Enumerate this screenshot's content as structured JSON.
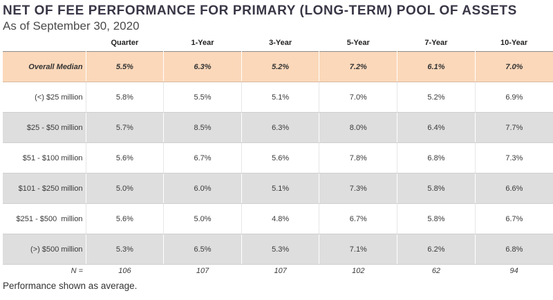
{
  "title": "NET OF FEE PERFORMANCE FOR PRIMARY (LONG-TERM) POOL OF ASSETS",
  "subtitle": "As of September 30, 2020",
  "columns": [
    "Quarter",
    "1-Year",
    "3-Year",
    "5-Year",
    "7-Year",
    "10-Year"
  ],
  "rows": [
    {
      "label": "Overall Median",
      "values": [
        "5.5%",
        "6.3%",
        "5.2%",
        "7.2%",
        "6.1%",
        "7.0%"
      ]
    },
    {
      "label": "(<) $25 million",
      "values": [
        "5.8%",
        "5.5%",
        "5.1%",
        "7.0%",
        "5.2%",
        "6.9%"
      ]
    },
    {
      "label": "$25 - $50 million",
      "values": [
        "5.7%",
        "8.5%",
        "6.3%",
        "8.0%",
        "6.4%",
        "7.7%"
      ]
    },
    {
      "label": "$51 - $100 million",
      "values": [
        "5.6%",
        "6.7%",
        "5.6%",
        "7.8%",
        "6.8%",
        "7.3%"
      ]
    },
    {
      "label": "$101 - $250 million",
      "values": [
        "5.0%",
        "6.0%",
        "5.1%",
        "7.3%",
        "5.8%",
        "6.6%"
      ]
    },
    {
      "label": "$251 - $500  million",
      "values": [
        "5.6%",
        "5.0%",
        "4.8%",
        "6.7%",
        "5.8%",
        "6.7%"
      ]
    },
    {
      "label": "(>) $500 million",
      "values": [
        "5.3%",
        "6.5%",
        "5.3%",
        "7.1%",
        "6.2%",
        "6.8%"
      ]
    }
  ],
  "n_row": {
    "label": "N =",
    "values": [
      "106",
      "107",
      "107",
      "102",
      "62",
      "94"
    ]
  },
  "footnote": "Performance shown as average.",
  "colors": {
    "median_fill": "#fbd8ba",
    "shaded_fill": "#dedede"
  }
}
